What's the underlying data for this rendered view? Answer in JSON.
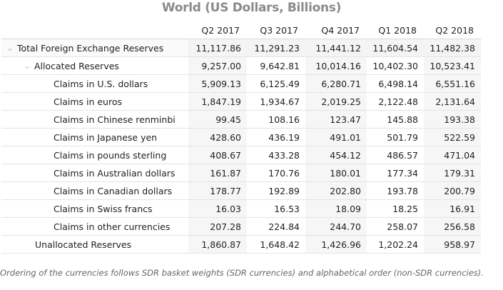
{
  "title": "World (US Dollars, Billions)",
  "columns": [
    "Q2 2017",
    "Q3 2017",
    "Q4 2017",
    "Q1 2018",
    "Q2 2018"
  ],
  "rows": [
    {
      "label": "Total Foreign Exchange Reserves",
      "values": [
        "11,117.86",
        "11,291.23",
        "11,441.12",
        "11,604.54",
        "11,482.38"
      ]
    },
    {
      "label": "Allocated Reserves",
      "values": [
        "9,257.00",
        "9,642.81",
        "10,014.16",
        "10,402.30",
        "10,523.41"
      ]
    },
    {
      "label": "Claims in U.S. dollars",
      "values": [
        "5,909.13",
        "6,125.49",
        "6,280.71",
        "6,498.14",
        "6,551.16"
      ]
    },
    {
      "label": "Claims in euros",
      "values": [
        "1,847.19",
        "1,934.67",
        "2,019.25",
        "2,122.48",
        "2,131.64"
      ]
    },
    {
      "label": "Claims in Chinese renminbi",
      "values": [
        "99.45",
        "108.16",
        "123.47",
        "145.88",
        "193.38"
      ]
    },
    {
      "label": "Claims in Japanese yen",
      "values": [
        "428.60",
        "436.19",
        "491.01",
        "501.79",
        "522.59"
      ]
    },
    {
      "label": "Claims in pounds sterling",
      "values": [
        "408.67",
        "433.28",
        "454.12",
        "486.57",
        "471.04"
      ]
    },
    {
      "label": "Claims in Australian dollars",
      "values": [
        "161.87",
        "170.76",
        "180.01",
        "177.34",
        "179.31"
      ]
    },
    {
      "label": "Claims in Canadian dollars",
      "values": [
        "178.77",
        "192.89",
        "202.80",
        "193.78",
        "200.79"
      ]
    },
    {
      "label": "Claims in Swiss francs",
      "values": [
        "16.03",
        "16.53",
        "18.09",
        "18.25",
        "16.91"
      ]
    },
    {
      "label": "Claims in other currencies",
      "values": [
        "207.28",
        "224.84",
        "244.70",
        "258.07",
        "256.58"
      ]
    },
    {
      "label": "Unallocated Reserves",
      "values": [
        "1,860.87",
        "1,648.42",
        "1,426.96",
        "1,202.24",
        "958.97"
      ]
    }
  ],
  "footnote": "Ordering of the currencies follows SDR basket weights (SDR currencies) and alphabetical order (non-SDR currencies).",
  "icons": {
    "collapse": "chevron-down-icon"
  }
}
